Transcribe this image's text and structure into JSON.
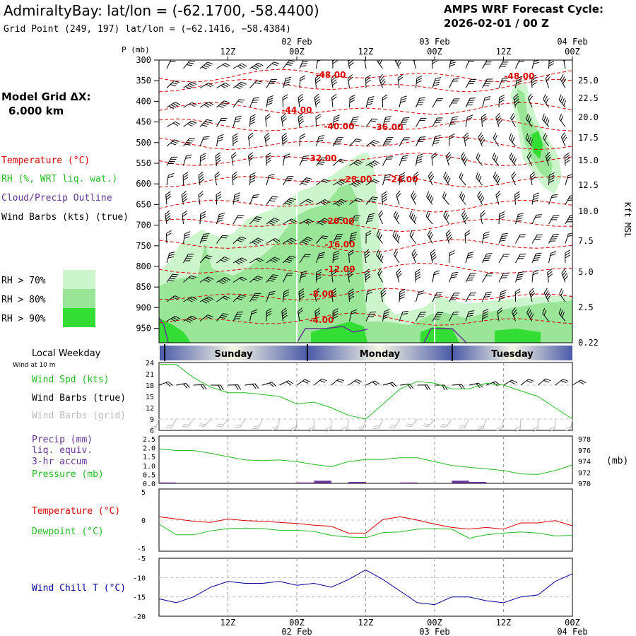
{
  "header": {
    "title": "AdmiraltyBay:  lat/lon = (-62.1700, -58.4400)",
    "grid_point": "Grid Point (249, 197) lat/lon = (−62.1416, −58.4384)",
    "cycle_label": "AMPS WRF Forecast Cycle:",
    "cycle_value": "2026-02-01 / 00  Z"
  },
  "left_panel": {
    "model_grid_label": "Model Grid ΔX:",
    "model_grid_value": "6.000 km",
    "temperature_label": "Temperature (°C)",
    "rh_label": "RH (%, WRT liq. wat.)",
    "cloud_label": "Cloud/Precip Outline",
    "wind_label": "Wind Barbs (kts) (true)",
    "rh70": "RH > 70%",
    "rh80": "RH > 80%",
    "rh90": "RH > 90%",
    "local_weekday": "Local Weekday",
    "wind_10m": "Wind at 10 m",
    "wind_spd_label": "Wind Spd (kts)",
    "wind_barbs_true": "Wind Barbs (true)",
    "wind_barbs_grid": "Wind Barbs (grid)",
    "precip_label": "Precip (mm)",
    "liq_label": "liq. equiv.",
    "accum_label": "3-hr accum",
    "pressure_label": "Pressure (mb)",
    "temp2_label": "Temperature (°C)",
    "dew_label": "Dewpoint (°C)",
    "chill_label": "Wind Chill T (°C)"
  },
  "colors": {
    "temperature": "#dd0000",
    "rh": "#22bb22",
    "cloud": "#663399",
    "rh70": "#ccf5cc",
    "rh80": "#99e699",
    "rh90": "#33dd33",
    "chill": "#000099"
  },
  "chart_data": [
    {
      "type": "heatmap",
      "name": "cross-section",
      "ylabel": "P (mb)",
      "y_ticks": [
        "300",
        "350",
        "400",
        "450",
        "500",
        "550",
        "600",
        "650",
        "700",
        "750",
        "800",
        "850",
        "900",
        "950"
      ],
      "right_label": "Kft MSL",
      "right_ticks": [
        "25.0",
        "22.5",
        "20.0",
        "17.5",
        "15.0",
        "12.5",
        "10.0",
        "7.5",
        "5.0",
        "2.5",
        "0.22"
      ],
      "x_top_ticks": [
        "12Z",
        "00Z",
        "12Z",
        "00Z",
        "12Z",
        "00Z"
      ],
      "date_labels": [
        "02 Feb",
        "03 Feb",
        "04 Feb"
      ],
      "temperature_labels": [
        "-48.00",
        "-48.00",
        "-44.00",
        "-40.00",
        "-36.00",
        "-32.00",
        "-28.00",
        "-24.00",
        "-20.00",
        "-16.00",
        "-12.00",
        "-8.00",
        "-4.00"
      ],
      "legend": [
        "RH > 70%",
        "RH > 80%",
        "RH > 90%"
      ]
    },
    {
      "type": "table",
      "name": "weekday-bar",
      "days": [
        "Sunday",
        "Monday",
        "Tuesday"
      ]
    },
    {
      "type": "line",
      "name": "wind-speed",
      "ylabel": "Wind Spd (kts)",
      "ylim": [
        6,
        24
      ],
      "y_ticks": [
        "24",
        "21",
        "18",
        "15",
        "12",
        "9",
        "6"
      ],
      "x_hours": [
        0,
        3,
        6,
        9,
        12,
        15,
        18,
        21,
        24,
        27,
        30,
        33,
        36,
        39,
        42,
        45,
        48,
        51,
        54,
        57,
        60,
        63,
        66,
        69,
        72
      ],
      "values": [
        23.5,
        23.5,
        20,
        17.5,
        16,
        16,
        15.5,
        15,
        13,
        13.5,
        12,
        10,
        9,
        13,
        17,
        19,
        18.5,
        17,
        17,
        18.5,
        18,
        16.5,
        15,
        12,
        9
      ]
    },
    {
      "type": "line",
      "name": "pressure-precip",
      "ylabel": "Precip (mm) / Pressure (mb)",
      "precip_ylim": [
        0,
        2.5
      ],
      "precip_ticks": [
        "2.5",
        "2.0",
        "1.5",
        "1.0",
        "0.5",
        "0.0"
      ],
      "pressure_ylim": [
        970,
        978
      ],
      "pressure_ticks": [
        "978",
        "976",
        "974",
        "972",
        "970"
      ],
      "pressure_unit": "(mb)",
      "x_hours": [
        0,
        3,
        6,
        9,
        12,
        15,
        18,
        21,
        24,
        27,
        30,
        33,
        36,
        39,
        42,
        45,
        48,
        51,
        54,
        57,
        60,
        63,
        66,
        69,
        72
      ],
      "pressure": [
        976.2,
        975.9,
        975.9,
        975.4,
        974.8,
        974.2,
        974.1,
        974.2,
        973.9,
        973.4,
        973.0,
        973.9,
        974.3,
        974.3,
        974.6,
        974.6,
        973.9,
        973.2,
        972.9,
        972.6,
        972.3,
        971.7,
        971.6,
        972.3,
        973.3
      ],
      "precip_bars": [
        {
          "hour": 0,
          "value": 0.05
        },
        {
          "hour": 24,
          "value": 0.05
        },
        {
          "hour": 27,
          "value": 0.15
        },
        {
          "hour": 33,
          "value": 0.08
        },
        {
          "hour": 42,
          "value": 0.05
        },
        {
          "hour": 51,
          "value": 0.15
        },
        {
          "hour": 54,
          "value": 0.08
        }
      ]
    },
    {
      "type": "line",
      "name": "temp-dewpoint",
      "ylim": [
        -5,
        5
      ],
      "y_ticks": [
        "5",
        "0",
        "-5"
      ],
      "x_hours": [
        0,
        3,
        6,
        9,
        12,
        15,
        18,
        21,
        24,
        27,
        30,
        33,
        36,
        39,
        42,
        45,
        48,
        51,
        54,
        57,
        60,
        63,
        66,
        69,
        72
      ],
      "series": [
        {
          "name": "Temperature (°C)",
          "values": [
            0.6,
            0.2,
            -0.2,
            -0.4,
            0.2,
            -0.1,
            -0.2,
            -0.4,
            -0.6,
            -0.9,
            -1.1,
            -2.3,
            -2.3,
            0.1,
            0.6,
            0.0,
            -0.7,
            -1.3,
            -1.6,
            -1.3,
            -1.6,
            -0.5,
            -0.5,
            -0.1,
            -1.0
          ]
        },
        {
          "name": "Dewpoint (°C)",
          "values": [
            -0.7,
            -2.6,
            -2.6,
            -1.9,
            -1.5,
            -1.4,
            -1.5,
            -1.8,
            -1.8,
            -2.0,
            -2.7,
            -3.0,
            -3.1,
            -2.2,
            -2.1,
            -1.6,
            -1.5,
            -1.6,
            -3.2,
            -2.6,
            -2.3,
            -2.1,
            -2.3,
            -2.8,
            -2.7
          ]
        }
      ]
    },
    {
      "type": "line",
      "name": "wind-chill",
      "ylim": [
        -20,
        -5
      ],
      "y_ticks": [
        "-5",
        "-10",
        "-15",
        "-20"
      ],
      "x_hours": [
        0,
        3,
        6,
        9,
        12,
        15,
        18,
        21,
        24,
        27,
        30,
        33,
        36,
        39,
        42,
        45,
        48,
        51,
        54,
        57,
        60,
        63,
        66,
        69,
        72
      ],
      "values": [
        -15.5,
        -16.5,
        -15,
        -12.5,
        -11,
        -11.5,
        -11.5,
        -11,
        -12,
        -11.5,
        -12.5,
        -10.5,
        -8,
        -10.5,
        -13.5,
        -16.5,
        -17,
        -15,
        -15,
        -16,
        -16.5,
        -15,
        -14.5,
        -11,
        -9
      ],
      "x_ticks": [
        "12Z",
        "00Z",
        "12Z",
        "00Z",
        "12Z",
        "00Z"
      ],
      "date_labels": [
        "02 Feb",
        "03 Feb",
        "04 Feb"
      ]
    }
  ]
}
